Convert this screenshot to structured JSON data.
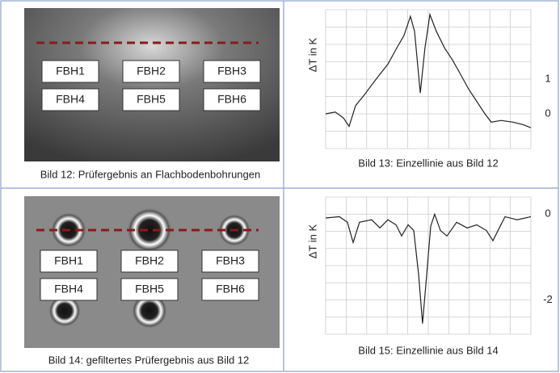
{
  "panels": [
    {
      "labels": [
        "FBH1",
        "FBH2",
        "FBH3",
        "FBH4",
        "FBH5",
        "FBH6"
      ],
      "caption": "Bild 12: Prüfergebnis an Flachbodenbohrungen"
    },
    {
      "caption": "Bild 13: Einzellinie aus Bild 12",
      "chart_data": {
        "type": "line",
        "y_label": "ΔT in K",
        "xlim": [
          0,
          100
        ],
        "ylim": [
          -1,
          3
        ],
        "yticks": [
          1,
          0
        ],
        "x": [
          0,
          4.7,
          8.7,
          11.4,
          14.6,
          18.5,
          22.4,
          26.4,
          30.3,
          34.3,
          38.2,
          41.3,
          43.3,
          46.1,
          48.4,
          50.8,
          53.9,
          57.9,
          61.8,
          65.7,
          69.7,
          73.6,
          77.6,
          80.7,
          85.4,
          91.3,
          96.1,
          100
        ],
        "values": [
          0,
          0.05,
          -0.12,
          -0.36,
          0.24,
          0.52,
          0.83,
          1.14,
          1.43,
          1.86,
          2.26,
          2.81,
          2.38,
          0.6,
          1.9,
          2.86,
          2.38,
          1.9,
          1.55,
          1.14,
          0.71,
          0.36,
          0,
          -0.24,
          -0.19,
          -0.24,
          -0.31,
          -0.4
        ],
        "color": "#222"
      }
    },
    {
      "labels": [
        "FBH1",
        "FBH2",
        "FBH3",
        "FBH4",
        "FBH5",
        "FBH6"
      ],
      "caption": "Bild 14: gefiltertes Prüfergebnis aus Bild 12"
    },
    {
      "caption": "Bild 15: Einzellinie aus Bild 14",
      "chart_data": {
        "type": "line",
        "y_label": "ΔT in K",
        "xlim": [
          0,
          100
        ],
        "ylim": [
          -2.8,
          0.4
        ],
        "yticks": [
          0,
          -2
        ],
        "x": [
          0,
          6.7,
          10.6,
          13.4,
          16.5,
          22.4,
          26.4,
          30.3,
          34.3,
          37,
          40.2,
          42.9,
          45.3,
          47.2,
          49.2,
          51.2,
          53.1,
          55.9,
          59.1,
          63.8,
          68.9,
          73.6,
          78.3,
          81.5,
          84.6,
          87.4,
          93.3,
          100
        ],
        "values": [
          -0.09,
          -0.06,
          -0.19,
          -0.66,
          -0.19,
          -0.13,
          -0.32,
          -0.13,
          -0.25,
          -0.51,
          -0.25,
          -0.38,
          -1.42,
          -2.55,
          -1.42,
          -0.28,
          0,
          -0.38,
          -0.51,
          -0.19,
          -0.32,
          -0.25,
          -0.38,
          -0.62,
          -0.32,
          -0.06,
          -0.13,
          -0.06
        ],
        "color": "#222"
      }
    }
  ]
}
